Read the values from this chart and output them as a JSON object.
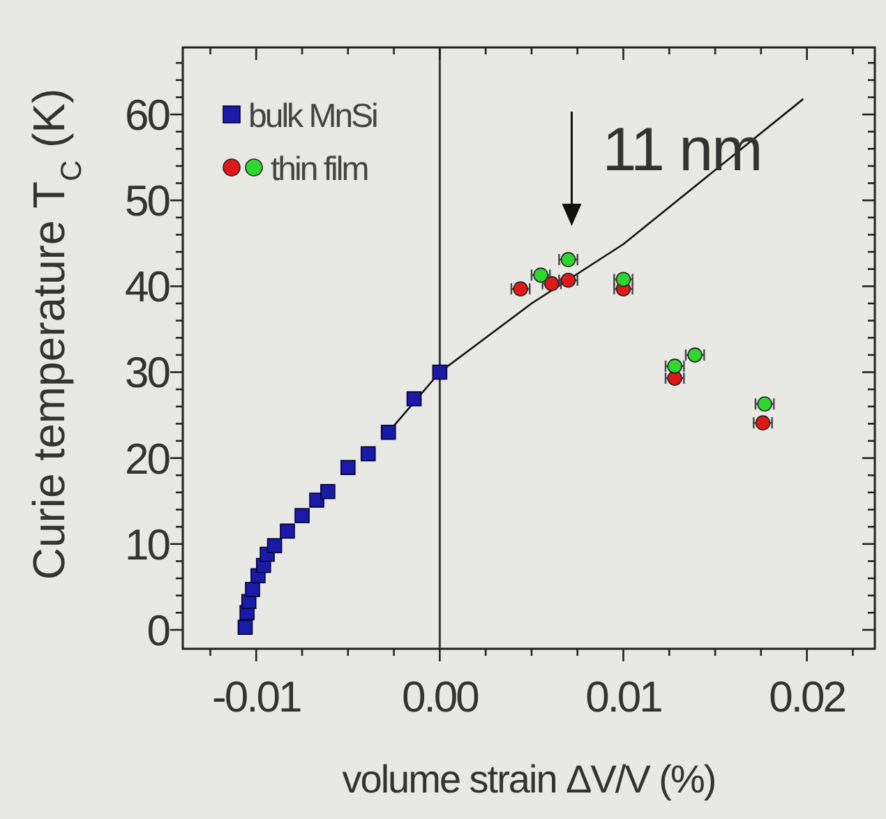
{
  "chart_data": {
    "type": "scatter",
    "xlabel": "volume strain ΔV/V (%)",
    "ylabel": "Curie temperature  T$_{C}$ (K)",
    "xlim": [
      -0.014,
      0.0237
    ],
    "ylim": [
      -2.2,
      67.8
    ],
    "xticks": [
      {
        "value": -0.0125,
        "label": null
      },
      {
        "value": -0.01,
        "label": "-0.01"
      },
      {
        "value": -0.0075,
        "label": null
      },
      {
        "value": -0.005,
        "label": null
      },
      {
        "value": -0.0025,
        "label": null
      },
      {
        "value": 0,
        "label": "0.00"
      },
      {
        "value": 0.0025,
        "label": null
      },
      {
        "value": 0.005,
        "label": null
      },
      {
        "value": 0.0075,
        "label": null
      },
      {
        "value": 0.01,
        "label": "0.01"
      },
      {
        "value": 0.0125,
        "label": null
      },
      {
        "value": 0.015,
        "label": null
      },
      {
        "value": 0.0175,
        "label": null
      },
      {
        "value": 0.02,
        "label": "0.02"
      },
      {
        "value": 0.0225,
        "label": null
      }
    ],
    "yticks": [
      0,
      {
        "value": 2,
        "label": null
      },
      {
        "value": 4,
        "label": null
      },
      {
        "value": 6,
        "label": null
      },
      {
        "value": 8,
        "label": null
      },
      10,
      {
        "value": 12,
        "label": null
      },
      {
        "value": 14,
        "label": null
      },
      {
        "value": 16,
        "label": null
      },
      {
        "value": 18,
        "label": null
      },
      20,
      {
        "value": 22,
        "label": null
      },
      {
        "value": 24,
        "label": null
      },
      {
        "value": 26,
        "label": null
      },
      {
        "value": 28,
        "label": null
      },
      30,
      {
        "value": 32,
        "label": null
      },
      {
        "value": 34,
        "label": null
      },
      {
        "value": 36,
        "label": null
      },
      {
        "value": 38,
        "label": null
      },
      40,
      {
        "value": 42,
        "label": null
      },
      {
        "value": 44,
        "label": null
      },
      {
        "value": 46,
        "label": null
      },
      {
        "value": 48,
        "label": null
      },
      50,
      {
        "value": 52,
        "label": null
      },
      {
        "value": 54,
        "label": null
      },
      {
        "value": 56,
        "label": null
      },
      {
        "value": 58,
        "label": null
      },
      60,
      {
        "value": 62,
        "label": null
      },
      {
        "value": 64,
        "label": null
      },
      {
        "value": 66,
        "label": null
      }
    ],
    "grid": false,
    "legend": "top left",
    "ref_lines": [
      {
        "axis": "x",
        "value": 0,
        "color": "#3a3a3a"
      }
    ],
    "annotations": [
      "11 nm"
    ],
    "series": [
      {
        "type": "line",
        "color": "#111111",
        "marker": "none",
        "line_style": "solid",
        "x": [
          -0.0028,
          0,
          0.005,
          0.01,
          0.0198
        ],
        "values": [
          23,
          30,
          38,
          44.9,
          61.8
        ]
      },
      {
        "name": "bulk MnSi",
        "color": "#1a1aa8",
        "marker": "square",
        "x": [
          -0.0106,
          -0.0105,
          -0.0104,
          -0.0102,
          -0.0099,
          -0.0096,
          -0.0094,
          -0.009,
          -0.0083,
          -0.0075,
          -0.0067,
          -0.0061,
          -0.005,
          -0.0039,
          -0.0028,
          -0.0014,
          0
        ],
        "values": [
          0.3,
          2,
          3.3,
          4.7,
          6.3,
          7.5,
          8.8,
          9.8,
          11.5,
          13.3,
          15.1,
          16.1,
          18.9,
          20.5,
          23,
          26.9,
          30
        ]
      },
      {
        "name": "thin film",
        "colors": [
          "#e01818",
          "#e01818",
          "#e01818",
          "#e01818",
          "#e01818",
          "#e01818",
          "#2ed62e",
          "#2ed62e",
          "#2ed62e",
          "#2ed62e",
          "#2ed62e",
          "#2ed62e"
        ],
        "marker": "circle",
        "x": [
          0.0044,
          0.0061,
          0.007,
          0.01,
          0.0128,
          0.0176,
          0.0055,
          0.007,
          0.01,
          0.0128,
          0.0139,
          0.0177
        ],
        "values": [
          39.7,
          40.3,
          40.7,
          39.7,
          29.3,
          24.1,
          41.3,
          43.1,
          40.8,
          30.7,
          32,
          26.3
        ],
        "xerrors": [
          0.0005,
          0.0005,
          0.0005,
          0.0005,
          0.0005,
          0.0005,
          0.0005,
          0.0005,
          0.0005,
          0.0005,
          0.0005,
          0.0005
        ]
      }
    ]
  }
}
